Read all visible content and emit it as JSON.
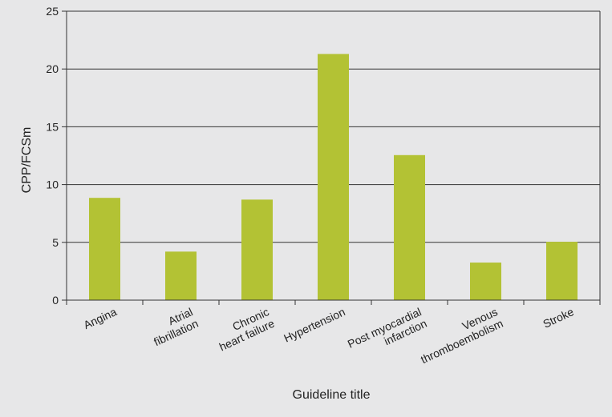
{
  "chart_data": {
    "type": "bar",
    "title": "",
    "xlabel": "Guideline title",
    "ylabel": "CPP/FCSm",
    "ylim": [
      0,
      25
    ],
    "yticks": [
      0,
      5,
      10,
      15,
      20,
      25
    ],
    "grid": true,
    "legend": "none",
    "bar_color": "#b3c234",
    "categories": [
      [
        "Angina"
      ],
      [
        "Atrial",
        "fibrillation"
      ],
      [
        "Chronic",
        "heart failure"
      ],
      [
        "Hypertension"
      ],
      [
        "Post myocardial",
        "infarction"
      ],
      [
        "Venous",
        "thromboembolism"
      ],
      [
        "Stroke"
      ]
    ],
    "values": [
      8.85,
      4.2,
      8.7,
      21.3,
      12.55,
      3.25,
      5.05
    ]
  }
}
